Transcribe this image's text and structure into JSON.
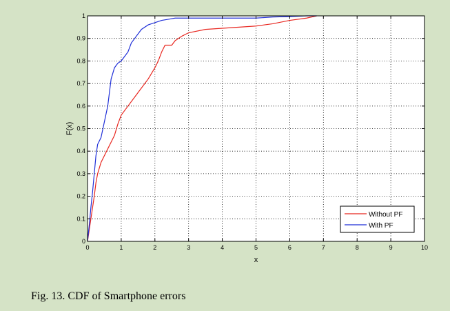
{
  "caption": "Fig. 13. CDF of Smartphone errors",
  "chart_data": {
    "type": "line",
    "title": "",
    "xlabel": "x",
    "ylabel": "F(x)",
    "xlim": [
      0,
      10
    ],
    "ylim": [
      0,
      1
    ],
    "x_ticks": [
      "0",
      "1",
      "2",
      "3",
      "4",
      "5",
      "6",
      "7",
      "8",
      "9",
      "10"
    ],
    "y_ticks": [
      "0",
      "0.1",
      "0.2",
      "0.3",
      "0.4",
      "0.5",
      "0.6",
      "0.7",
      "0.8",
      "0.9",
      "1"
    ],
    "grid": true,
    "legend_position": "bottom-right",
    "series": [
      {
        "name": "Without PF",
        "color": "#e8261f",
        "x": [
          0,
          0.05,
          0.1,
          0.15,
          0.2,
          0.25,
          0.3,
          0.4,
          0.5,
          0.6,
          0.7,
          0.8,
          0.9,
          1.0,
          1.2,
          1.4,
          1.6,
          1.8,
          2.0,
          2.1,
          2.2,
          2.3,
          2.4,
          2.5,
          2.6,
          2.8,
          3.0,
          3.5,
          4.0,
          4.5,
          5.0,
          5.5,
          6.0,
          6.5,
          6.8
        ],
        "y": [
          0,
          0.05,
          0.1,
          0.15,
          0.2,
          0.26,
          0.3,
          0.35,
          0.38,
          0.41,
          0.44,
          0.47,
          0.52,
          0.56,
          0.6,
          0.64,
          0.68,
          0.72,
          0.77,
          0.8,
          0.84,
          0.87,
          0.87,
          0.87,
          0.89,
          0.91,
          0.925,
          0.94,
          0.945,
          0.95,
          0.955,
          0.965,
          0.98,
          0.99,
          1.0
        ]
      },
      {
        "name": "With PF",
        "color": "#1f2fd8",
        "x": [
          0,
          0.05,
          0.1,
          0.15,
          0.2,
          0.25,
          0.3,
          0.4,
          0.5,
          0.6,
          0.7,
          0.8,
          0.9,
          1.0,
          1.1,
          1.2,
          1.3,
          1.4,
          1.5,
          1.6,
          1.8,
          2.0,
          2.2,
          2.4,
          2.6,
          3.0,
          4.0,
          5.0,
          5.5,
          6.0,
          6.5,
          6.8
        ],
        "y": [
          0,
          0.07,
          0.15,
          0.22,
          0.3,
          0.38,
          0.43,
          0.46,
          0.53,
          0.6,
          0.72,
          0.77,
          0.79,
          0.8,
          0.82,
          0.84,
          0.88,
          0.9,
          0.92,
          0.94,
          0.96,
          0.97,
          0.98,
          0.985,
          0.99,
          0.99,
          0.99,
          0.99,
          0.995,
          0.997,
          1.0,
          1.0
        ]
      }
    ]
  }
}
